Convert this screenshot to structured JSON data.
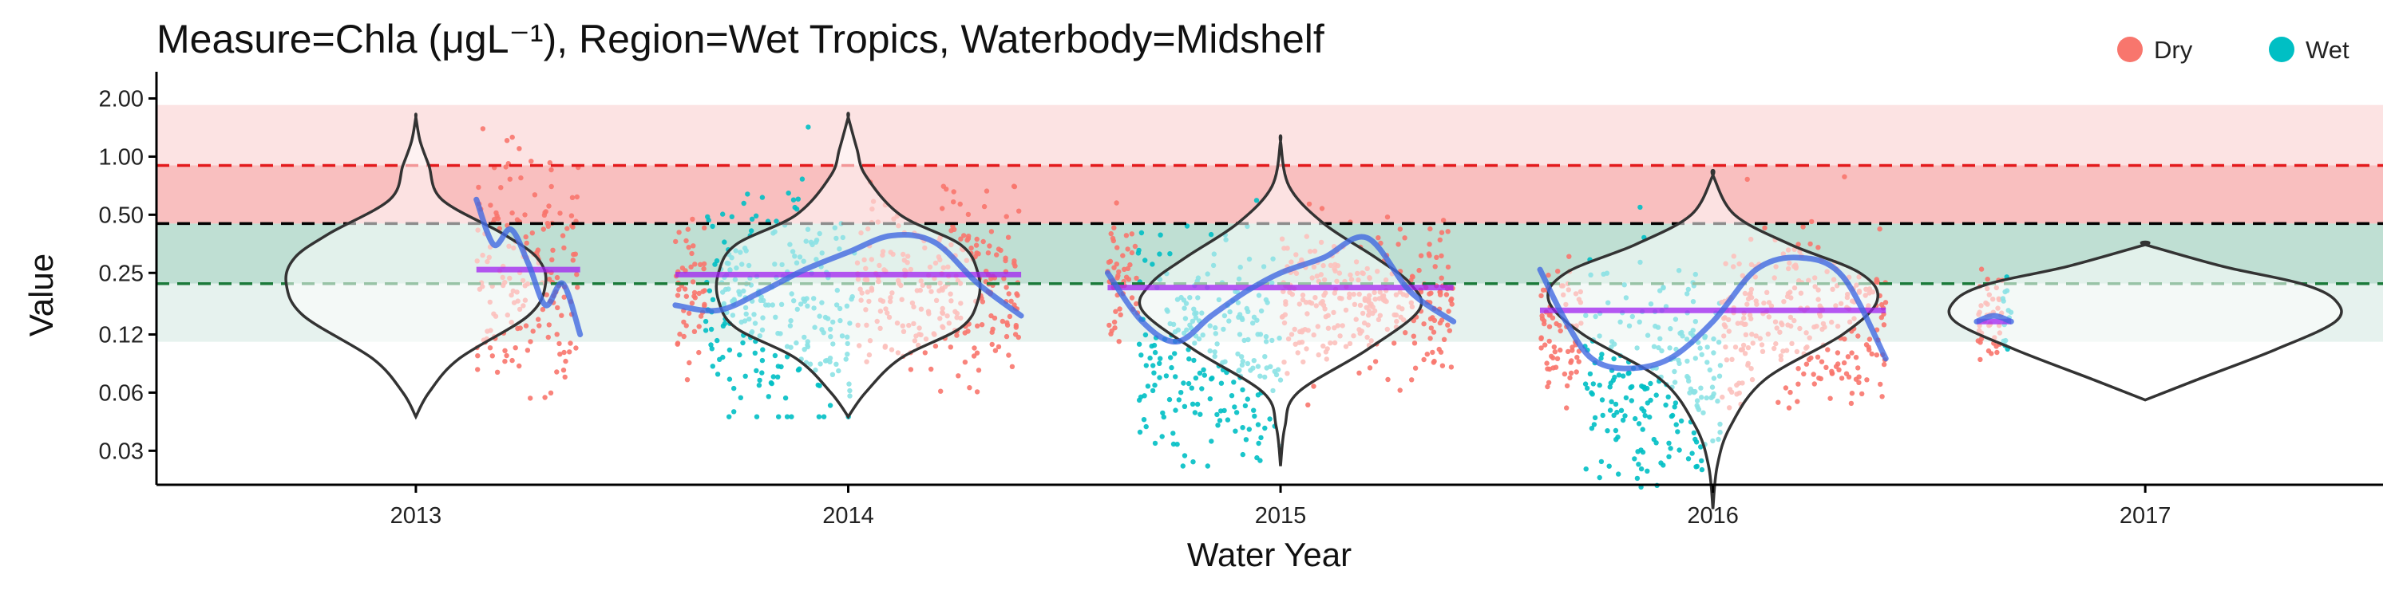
{
  "chart_data": {
    "type": "scatter",
    "title": "Measure=Chla (μgL⁻¹), Region=Wet Tropics, Waterbody=Midshelf",
    "xlabel": "Water Year",
    "ylabel": "Value",
    "y_scale": "log",
    "ylim": [
      0.02,
      2.5
    ],
    "y_ticks": [
      0.03,
      0.06,
      0.12,
      0.25,
      0.5,
      1.0,
      2.0
    ],
    "y_tick_labels": [
      "0.03",
      "0.06",
      "0.12",
      "0.25",
      "0.50",
      "1.00",
      "2.00"
    ],
    "x_ticks": [
      2013,
      2014,
      2015,
      2016,
      2017
    ],
    "x_tick_labels": [
      "2013",
      "2014",
      "2015",
      "2016",
      "2017"
    ],
    "xlim": [
      2012.4,
      2017.55
    ],
    "legend": {
      "position": "top-right",
      "entries": [
        {
          "label": "Dry",
          "color": "#F8766D"
        },
        {
          "label": "Wet",
          "color": "#00BFC4"
        }
      ]
    },
    "colors": {
      "dry": "#F8766D",
      "wet": "#00BFC4",
      "trend": "#4169E1",
      "median": "#A020F0",
      "red_line": "#E31A1C",
      "black_line": "#000000",
      "green_line": "#1B7A3A",
      "band_light_red": "#FCE3E3",
      "band_red": "#F9BFBF",
      "band_green_dark": "#BFDFD3",
      "band_green_light": "#E6F2EE"
    },
    "guideline_lines": [
      {
        "name": "red",
        "value": 0.9
      },
      {
        "name": "black",
        "value": 0.45
      },
      {
        "name": "green",
        "value": 0.22
      }
    ],
    "bands": [
      {
        "from": 0.9,
        "to": 1.85,
        "color": "band_light_red"
      },
      {
        "from": 0.45,
        "to": 0.9,
        "color": "band_red"
      },
      {
        "from": 0.22,
        "to": 0.45,
        "color": "band_green_dark"
      },
      {
        "from": 0.11,
        "to": 0.22,
        "color": "band_green_light"
      }
    ],
    "year_medians": [
      {
        "year": 2013,
        "from": 2013.14,
        "to": 2013.38,
        "value": 0.26
      },
      {
        "year": 2014,
        "from": 2013.6,
        "to": 2014.4,
        "value": 0.245
      },
      {
        "year": 2015,
        "from": 2014.6,
        "to": 2015.4,
        "value": 0.21
      },
      {
        "year": 2016,
        "from": 2015.6,
        "to": 2016.4,
        "value": 0.16
      },
      {
        "year": 2017,
        "from": 2016.61,
        "to": 2016.69,
        "value": 0.14
      }
    ],
    "observation_clusters": [
      {
        "season": "Dry",
        "from": 2013.14,
        "to": 2013.38,
        "median": 0.24,
        "min": 0.045,
        "max": 1.6
      },
      {
        "season": "Dry",
        "from": 2013.6,
        "to": 2013.67,
        "median": 0.2,
        "min": 0.07,
        "max": 0.75
      },
      {
        "season": "Wet",
        "from": 2013.67,
        "to": 2014.02,
        "median": 0.16,
        "min": 0.045,
        "max": 1.6
      },
      {
        "season": "Dry",
        "from": 2014.02,
        "to": 2014.4,
        "median": 0.2,
        "min": 0.06,
        "max": 1.0
      },
      {
        "season": "Dry",
        "from": 2014.6,
        "to": 2014.67,
        "median": 0.25,
        "min": 0.08,
        "max": 0.6
      },
      {
        "season": "Wet",
        "from": 2014.67,
        "to": 2015.0,
        "median": 0.1,
        "min": 0.025,
        "max": 0.9
      },
      {
        "season": "Dry",
        "from": 2015.0,
        "to": 2015.4,
        "median": 0.18,
        "min": 0.05,
        "max": 0.6
      },
      {
        "season": "Dry",
        "from": 2015.6,
        "to": 2015.7,
        "median": 0.14,
        "min": 0.05,
        "max": 0.35
      },
      {
        "season": "Wet",
        "from": 2015.7,
        "to": 2016.02,
        "median": 0.07,
        "min": 0.015,
        "max": 0.55
      },
      {
        "season": "Dry",
        "from": 2016.02,
        "to": 2016.4,
        "median": 0.14,
        "min": 0.05,
        "max": 0.8
      },
      {
        "season": "Dry",
        "from": 2016.61,
        "to": 2016.67,
        "median": 0.15,
        "min": 0.07,
        "max": 0.3
      },
      {
        "season": "Wet",
        "from": 2016.67,
        "to": 2016.69,
        "median": 0.14,
        "min": 0.07,
        "max": 0.25
      }
    ],
    "trend_lines": [
      {
        "year": 2013,
        "x": [
          2013.14,
          2013.18,
          2013.22,
          2013.26,
          2013.3,
          2013.34,
          2013.38
        ],
        "y": [
          0.6,
          0.35,
          0.42,
          0.28,
          0.17,
          0.22,
          0.12
        ]
      },
      {
        "year": 2014,
        "x": [
          2013.6,
          2013.7,
          2013.8,
          2013.9,
          2014.0,
          2014.1,
          2014.2,
          2014.3,
          2014.4
        ],
        "y": [
          0.17,
          0.16,
          0.2,
          0.26,
          0.32,
          0.39,
          0.36,
          0.22,
          0.15
        ]
      },
      {
        "year": 2015,
        "x": [
          2014.6,
          2014.68,
          2014.76,
          2014.84,
          2014.92,
          2015.0,
          2015.1,
          2015.2,
          2015.3,
          2015.4
        ],
        "y": [
          0.25,
          0.14,
          0.11,
          0.15,
          0.2,
          0.25,
          0.3,
          0.38,
          0.2,
          0.14
        ]
      },
      {
        "year": 2016,
        "x": [
          2015.6,
          2015.66,
          2015.72,
          2015.8,
          2015.9,
          2016.0,
          2016.1,
          2016.2,
          2016.3,
          2016.4
        ],
        "y": [
          0.26,
          0.14,
          0.09,
          0.08,
          0.09,
          0.14,
          0.26,
          0.3,
          0.24,
          0.09
        ]
      },
      {
        "year": 2017,
        "x": [
          2016.61,
          2016.65,
          2016.69
        ],
        "y": [
          0.14,
          0.15,
          0.14
        ]
      }
    ],
    "violins": [
      {
        "year": 2013,
        "center": 2013.0,
        "y": [
          0.045,
          0.06,
          0.09,
          0.15,
          0.22,
          0.3,
          0.4,
          0.6,
          0.9,
          1.2,
          1.6
        ],
        "width": [
          0.0,
          0.03,
          0.1,
          0.26,
          0.3,
          0.28,
          0.2,
          0.06,
          0.03,
          0.01,
          0.0
        ]
      },
      {
        "year": 2014,
        "center": 2014.0,
        "y": [
          0.045,
          0.06,
          0.09,
          0.13,
          0.18,
          0.25,
          0.35,
          0.5,
          0.8,
          1.1,
          1.6
        ],
        "width": [
          0.0,
          0.04,
          0.12,
          0.26,
          0.3,
          0.3,
          0.26,
          0.12,
          0.04,
          0.02,
          0.0
        ]
      },
      {
        "year": 2015,
        "center": 2015.0,
        "y": [
          0.025,
          0.04,
          0.06,
          0.1,
          0.16,
          0.22,
          0.3,
          0.45,
          0.7,
          1.2
        ],
        "width": [
          0.0,
          0.01,
          0.04,
          0.2,
          0.32,
          0.3,
          0.22,
          0.1,
          0.02,
          0.0
        ]
      },
      {
        "year": 2016,
        "center": 2016.0,
        "y": [
          0.015,
          0.025,
          0.04,
          0.07,
          0.12,
          0.18,
          0.25,
          0.35,
          0.5,
          0.8
        ],
        "width": [
          0.0,
          0.01,
          0.04,
          0.12,
          0.3,
          0.38,
          0.34,
          0.18,
          0.05,
          0.0
        ]
      },
      {
        "year": 2017,
        "center": 2017.0,
        "y": [
          0.055,
          0.07,
          0.1,
          0.14,
          0.18,
          0.22,
          0.27,
          0.35
        ],
        "width": [
          0.0,
          0.12,
          0.3,
          0.44,
          0.44,
          0.36,
          0.18,
          0.0
        ]
      }
    ]
  }
}
